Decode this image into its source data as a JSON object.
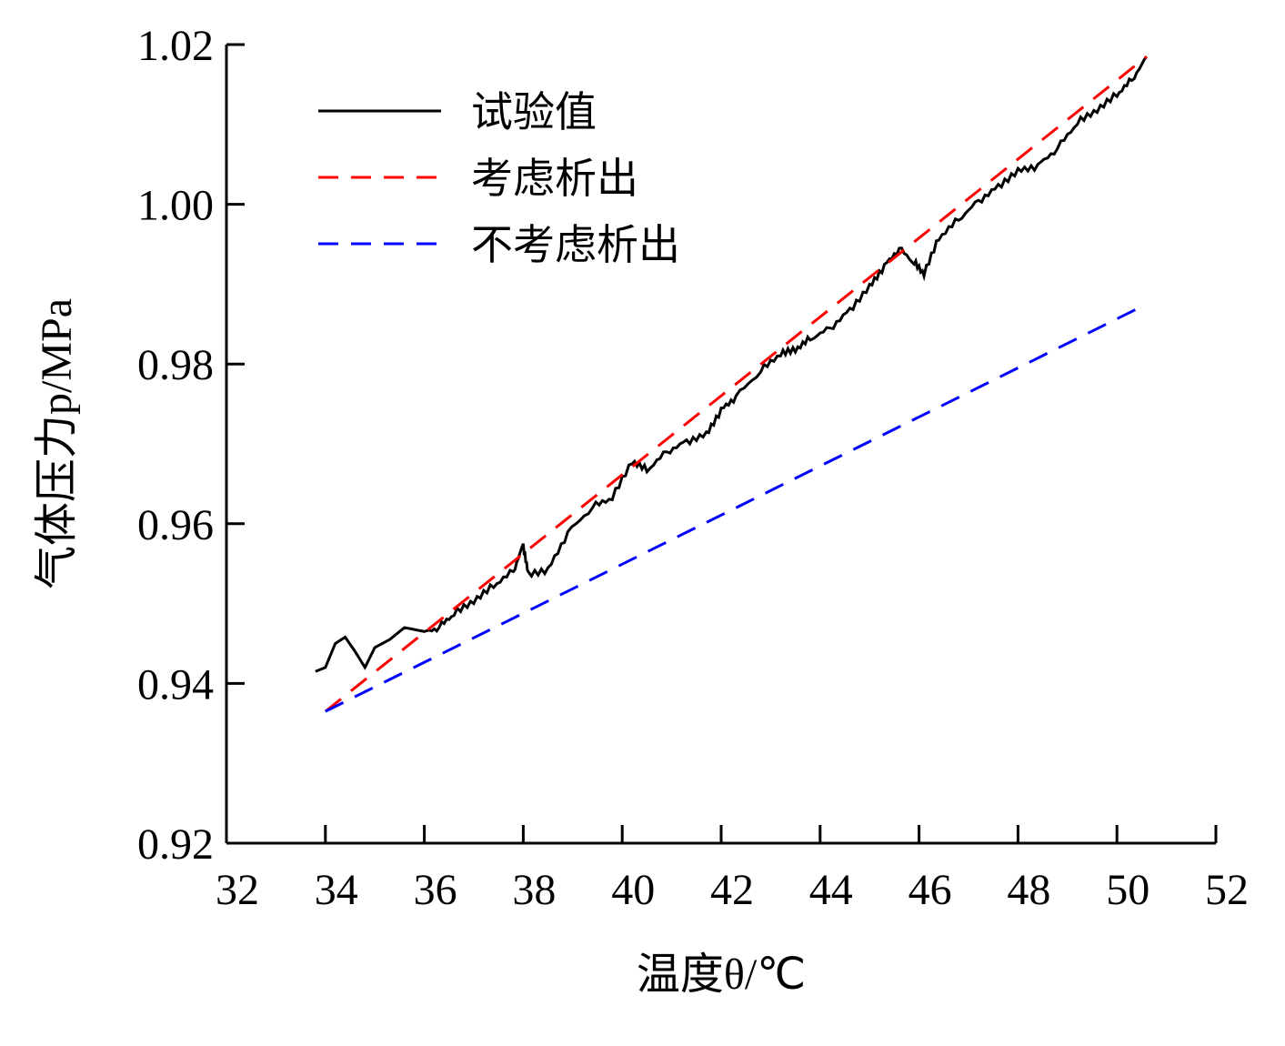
{
  "chart_data": {
    "type": "line",
    "title": "",
    "xlabel": "温度θ/℃",
    "ylabel": "气体压力p/MPa",
    "xlim": [
      32,
      52
    ],
    "ylim": [
      0.92,
      1.02
    ],
    "xticks": [
      "32",
      "34",
      "36",
      "38",
      "40",
      "42",
      "44",
      "46",
      "48",
      "50",
      "52"
    ],
    "yticks": [
      "0.92",
      "0.94",
      "0.96",
      "0.98",
      "1.00",
      "1.02"
    ],
    "legend_position": "top-left",
    "series": [
      {
        "name": "试验值",
        "color": "#000000",
        "style": "solid",
        "x": [
          33.8,
          34.0,
          34.2,
          34.4,
          34.6,
          34.8,
          35.0,
          35.3,
          35.6,
          36.0,
          36.3,
          36.6,
          37.0,
          37.4,
          37.8,
          38.0,
          38.1,
          38.5,
          38.9,
          39.4,
          39.8,
          40.2,
          40.5,
          40.9,
          41.3,
          41.7,
          42.0,
          42.3,
          42.8,
          43.2,
          43.5,
          43.8,
          44.2,
          44.6,
          45.0,
          45.3,
          45.6,
          45.9,
          46.1,
          46.4,
          46.8,
          47.2,
          47.6,
          48.0,
          48.4,
          48.8,
          49.2,
          49.6,
          50.0,
          50.3,
          50.6
        ],
        "y": [
          0.9415,
          0.942,
          0.945,
          0.9458,
          0.944,
          0.942,
          0.9445,
          0.9455,
          0.947,
          0.9465,
          0.947,
          0.9485,
          0.95,
          0.952,
          0.954,
          0.9575,
          0.954,
          0.9545,
          0.959,
          0.962,
          0.963,
          0.9675,
          0.9665,
          0.969,
          0.9705,
          0.9715,
          0.9745,
          0.976,
          0.979,
          0.981,
          0.9815,
          0.983,
          0.9845,
          0.987,
          0.99,
          0.9925,
          0.9945,
          0.9925,
          0.991,
          0.9955,
          0.998,
          1.0005,
          1.0025,
          1.0045,
          1.005,
          1.007,
          1.01,
          1.0115,
          1.0135,
          1.0155,
          1.0185
        ]
      },
      {
        "name": "考虑析出",
        "color": "#ff0000",
        "style": "dashed",
        "x": [
          34.0,
          50.6
        ],
        "y": [
          0.9365,
          1.0185
        ]
      },
      {
        "name": "不考虑析出",
        "color": "#0000ff",
        "style": "dashed",
        "x": [
          34.0,
          50.6
        ],
        "y": [
          0.9365,
          0.9875
        ]
      }
    ]
  }
}
